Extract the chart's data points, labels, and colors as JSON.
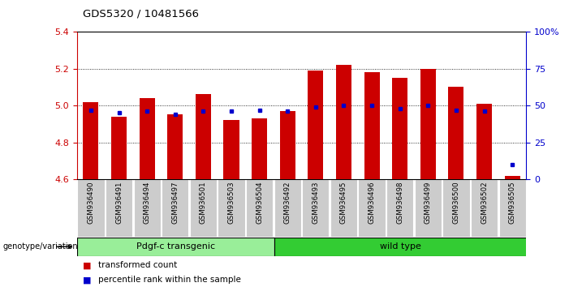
{
  "title": "GDS5320 / 10481566",
  "samples": [
    "GSM936490",
    "GSM936491",
    "GSM936494",
    "GSM936497",
    "GSM936501",
    "GSM936503",
    "GSM936504",
    "GSM936492",
    "GSM936493",
    "GSM936495",
    "GSM936496",
    "GSM936498",
    "GSM936499",
    "GSM936500",
    "GSM936502",
    "GSM936505"
  ],
  "transformed_count": [
    5.02,
    4.94,
    5.04,
    4.95,
    5.06,
    4.92,
    4.93,
    4.97,
    5.19,
    5.22,
    5.18,
    5.15,
    5.2,
    5.1,
    5.01,
    4.62
  ],
  "percentile_rank": [
    47,
    45,
    46,
    44,
    46,
    46,
    47,
    46,
    49,
    50,
    50,
    48,
    50,
    47,
    46,
    10
  ],
  "bar_bottom": 4.6,
  "ylim": [
    4.6,
    5.4
  ],
  "y2lim": [
    0,
    100
  ],
  "yticks": [
    4.6,
    4.8,
    5.0,
    5.2,
    5.4
  ],
  "y2ticks": [
    0,
    25,
    50,
    75,
    100
  ],
  "y2ticklabels": [
    "0",
    "25",
    "50",
    "75",
    "100%"
  ],
  "red_color": "#cc0000",
  "blue_color": "#0000cc",
  "group1_label": "Pdgf-c transgenic",
  "group2_label": "wild type",
  "group1_count": 7,
  "group2_count": 9,
  "group1_color": "#99ee99",
  "group2_color": "#33cc33",
  "bg_color_tick": "#cccccc",
  "legend_red": "transformed count",
  "legend_blue": "percentile rank within the sample",
  "xlabel_left": "genotype/variation"
}
